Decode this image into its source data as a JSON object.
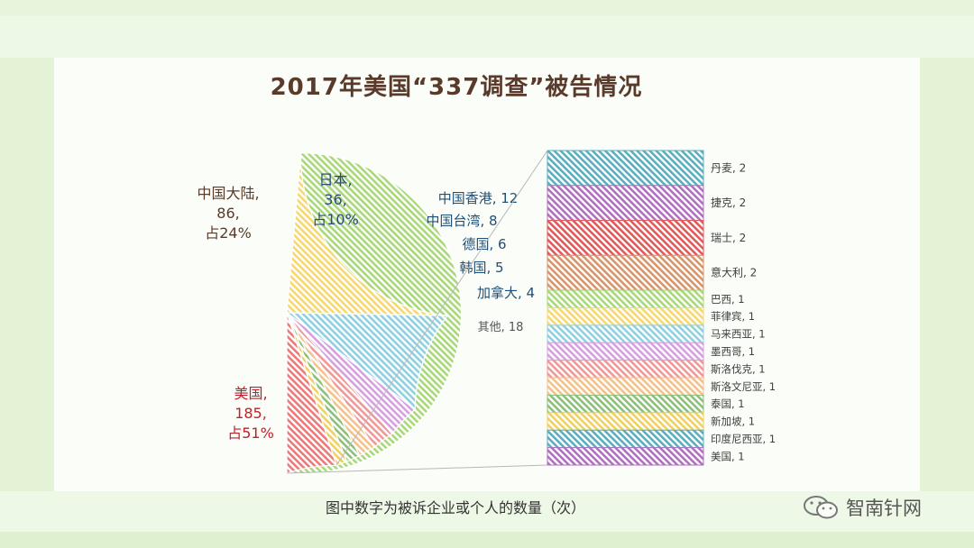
{
  "title": "2017年美国“337调查”被告情况",
  "footnote": "图中数字为被诉企业或个人的数量（次）",
  "brand": {
    "icon": "wechat-icon",
    "name": "智南针网"
  },
  "chart_data": {
    "type": "pie",
    "title": "2017年美国“337调查”被告情况",
    "start_angle_deg": 270,
    "direction": "counterclockwise",
    "slices": [
      {
        "name": "美国",
        "value": 185,
        "label_lines": [
          "美国,",
          "185,",
          "占51%"
        ],
        "color": "#a8d878",
        "label_color": "#c0202a"
      },
      {
        "name": "中国大陆",
        "value": 86,
        "label_lines": [
          "中国大陆,",
          "86,",
          "占24%"
        ],
        "color": "#f6d770",
        "label_color": "#5a3a2a"
      },
      {
        "name": "日本",
        "value": 36,
        "label_lines": [
          "日本,",
          "36,",
          "占10%"
        ],
        "color": "#8fd0e0",
        "label_color": "#2a4a7a"
      },
      {
        "name": "中国香港",
        "value": 12,
        "label_lines": [
          "中国香港, 12"
        ],
        "color": "#d6a0e0",
        "label_color": "#1f4f78"
      },
      {
        "name": "中国台湾",
        "value": 8,
        "label_lines": [
          "中国台湾, 8"
        ],
        "color": "#f09898",
        "label_color": "#1f4f78"
      },
      {
        "name": "德国",
        "value": 6,
        "label_lines": [
          "德国, 6"
        ],
        "color": "#f5c18a",
        "label_color": "#1f4f78"
      },
      {
        "name": "韩国",
        "value": 5,
        "label_lines": [
          "韩国, 5"
        ],
        "color": "#8cc07a",
        "label_color": "#1f4f78"
      },
      {
        "name": "加拿大",
        "value": 4,
        "label_lines": [
          "加拿大, 4"
        ],
        "color": "#f0d060",
        "label_color": "#1f4f78"
      },
      {
        "name": "其他",
        "value": 18,
        "label_lines": [
          "其他, 18"
        ],
        "color": "#ec7a7a",
        "label_color": "#555555"
      }
    ],
    "breakdown": {
      "of": "其他",
      "items": [
        {
          "name": "丹麦",
          "value": 2,
          "label": "丹麦, 2",
          "color": "#5aaebe"
        },
        {
          "name": "捷克",
          "value": 2,
          "label": "捷克, 2",
          "color": "#b070c0"
        },
        {
          "name": "瑞士",
          "value": 2,
          "label": "瑞士, 2",
          "color": "#e05a5a"
        },
        {
          "name": "意大利",
          "value": 2,
          "label": "意大利, 2",
          "color": "#d8956a"
        },
        {
          "name": "巴西",
          "value": 1,
          "label": "巴西, 1",
          "color": "#a8d878"
        },
        {
          "name": "菲律宾",
          "value": 1,
          "label": "菲律宾, 1",
          "color": "#f6d770"
        },
        {
          "name": "马来西亚",
          "value": 1,
          "label": "马来西亚, 1",
          "color": "#8fd0e0"
        },
        {
          "name": "墨西哥",
          "value": 1,
          "label": "墨西哥, 1",
          "color": "#d6a0e0"
        },
        {
          "name": "斯洛伐克",
          "value": 1,
          "label": "斯洛伐克, 1",
          "color": "#f09898"
        },
        {
          "name": "斯洛文尼亚",
          "value": 1,
          "label": "斯洛文尼亚, 1",
          "color": "#f5c18a"
        },
        {
          "name": "泰国",
          "value": 1,
          "label": "泰国, 1",
          "color": "#8cc07a"
        },
        {
          "name": "新加坡",
          "value": 1,
          "label": "新加坡, 1",
          "color": "#f0d060"
        },
        {
          "name": "印度尼西亚",
          "value": 1,
          "label": "印度尼西亚, 1",
          "color": "#5aaebe"
        },
        {
          "name": "美国",
          "value": 1,
          "label": "美国, 1",
          "color": "#b070c0"
        }
      ]
    }
  }
}
